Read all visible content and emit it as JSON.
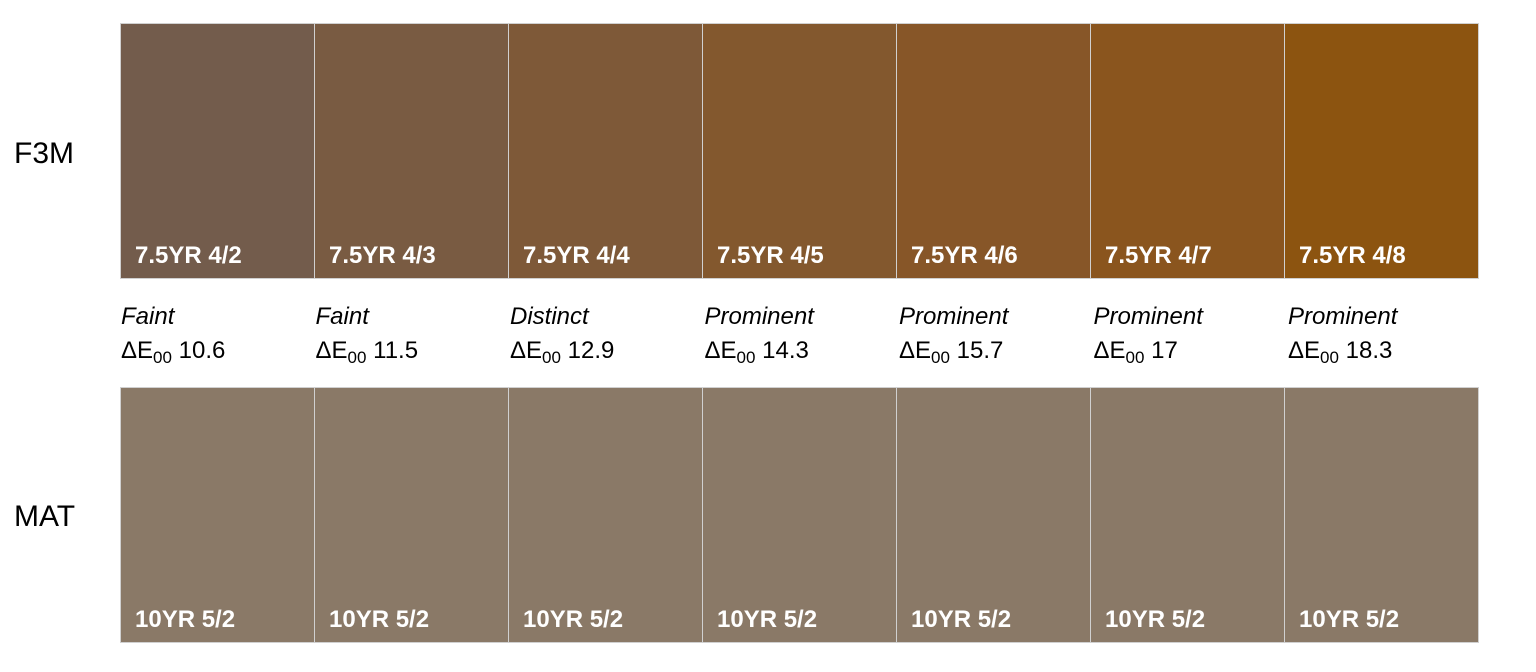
{
  "rows": {
    "top": {
      "label": "F3M",
      "swatches": [
        {
          "code": "7.5YR 4/2",
          "color": "#735c4c"
        },
        {
          "code": "7.5YR 4/3",
          "color": "#795b42"
        },
        {
          "code": "7.5YR 4/4",
          "color": "#7e5938"
        },
        {
          "code": "7.5YR 4/5",
          "color": "#83582e"
        },
        {
          "code": "7.5YR 4/6",
          "color": "#875628"
        },
        {
          "code": "7.5YR 4/7",
          "color": "#8a551e"
        },
        {
          "code": "7.5YR 4/8",
          "color": "#8c5410"
        }
      ]
    },
    "bottom": {
      "label": "MAT",
      "swatches": [
        {
          "code": "10YR 5/2",
          "color": "#8a7967"
        },
        {
          "code": "10YR 5/2",
          "color": "#8a7967"
        },
        {
          "code": "10YR 5/2",
          "color": "#8a7967"
        },
        {
          "code": "10YR 5/2",
          "color": "#8a7967"
        },
        {
          "code": "10YR 5/2",
          "color": "#8a7967"
        },
        {
          "code": "10YR 5/2",
          "color": "#8a7967"
        },
        {
          "code": "10YR 5/2",
          "color": "#8a7967"
        }
      ]
    }
  },
  "delta_symbol": "ΔE",
  "delta_subscript": "00",
  "comparisons": [
    {
      "rating": "Faint",
      "delta": "10.6"
    },
    {
      "rating": "Faint",
      "delta": "11.5"
    },
    {
      "rating": "Distinct",
      "delta": "12.9"
    },
    {
      "rating": "Prominent",
      "delta": "14.3"
    },
    {
      "rating": "Prominent",
      "delta": "15.7"
    },
    {
      "rating": "Prominent",
      "delta": "17"
    },
    {
      "rating": "Prominent",
      "delta": "18.3"
    }
  ]
}
